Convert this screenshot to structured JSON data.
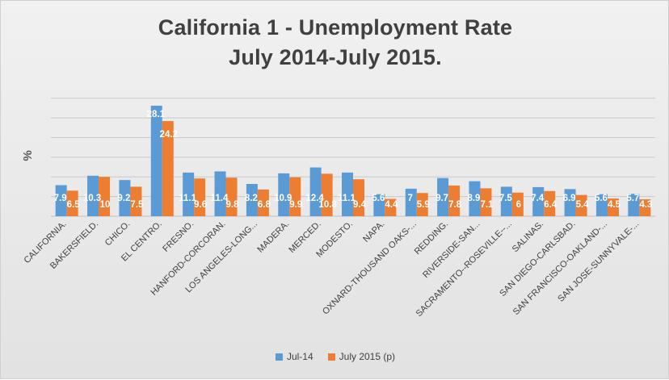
{
  "chart_data": {
    "type": "bar",
    "title": "California 1 - Unemployment Rate",
    "subtitle": "July 2014-July 2015.",
    "xlabel": "",
    "ylabel": "%",
    "ylim": [
      0,
      32
    ],
    "grid": true,
    "legend_position": "bottom",
    "categories": [
      "CALIFORNIA.",
      "BAKERSFIELD.",
      "CHICO.",
      "EL CENTRO.",
      "FRESNO.",
      "HANFORD-CORCORAN.",
      "LOS ANGELES-LONG...",
      "MADERA.",
      "MERCED.",
      "MODESTO.",
      "NAPA.",
      "OXNARD-THOUSAND OAKS-...",
      "REDDING.",
      "RIVERSIDE-SAN...",
      "SACRAMENTO--ROSEVILLE--...",
      "SALINAS.",
      "SAN DIEGO-CARLSBAD.",
      "SAN FRANCISCO-OAKLAND-...",
      "SAN JOSE-SUNNYVALE-..."
    ],
    "series": [
      {
        "name": "Jul-14",
        "color": "#5b9bd5",
        "values": [
          7.9,
          10.3,
          9.2,
          28.1,
          11.1,
          11.4,
          8.2,
          10.9,
          12.4,
          11.1,
          5.6,
          7,
          9.7,
          8.9,
          7.5,
          7.4,
          6.9,
          5.6,
          5.7
        ],
        "labels": [
          "7.9",
          "10.3",
          "9.2",
          "28.1",
          "11.1",
          "11.4",
          "8.2",
          "10.9",
          "12.4",
          "11.1",
          "5.6",
          "7",
          "9.7",
          "8.9",
          "7.5",
          "7.4",
          "6.9",
          "5.6",
          "5.7"
        ]
      },
      {
        "name": "July 2015 (p)",
        "color": "#ed7d31",
        "values": [
          6.5,
          10,
          7.5,
          24.2,
          9.6,
          9.8,
          6.8,
          9.9,
          10.8,
          9.4,
          4.4,
          5.9,
          7.8,
          7.1,
          6,
          6.4,
          5.4,
          4.5,
          4.3
        ],
        "labels": [
          "6.5",
          "10",
          "7.5",
          "24.2",
          "9.6",
          "9.8",
          "6.8",
          "9.9",
          "10.8",
          "9.4",
          "4.4",
          "5.9",
          "7.8",
          "7.1",
          "6",
          "6.4",
          "5.4",
          "4.5",
          "4.3"
        ]
      }
    ]
  }
}
